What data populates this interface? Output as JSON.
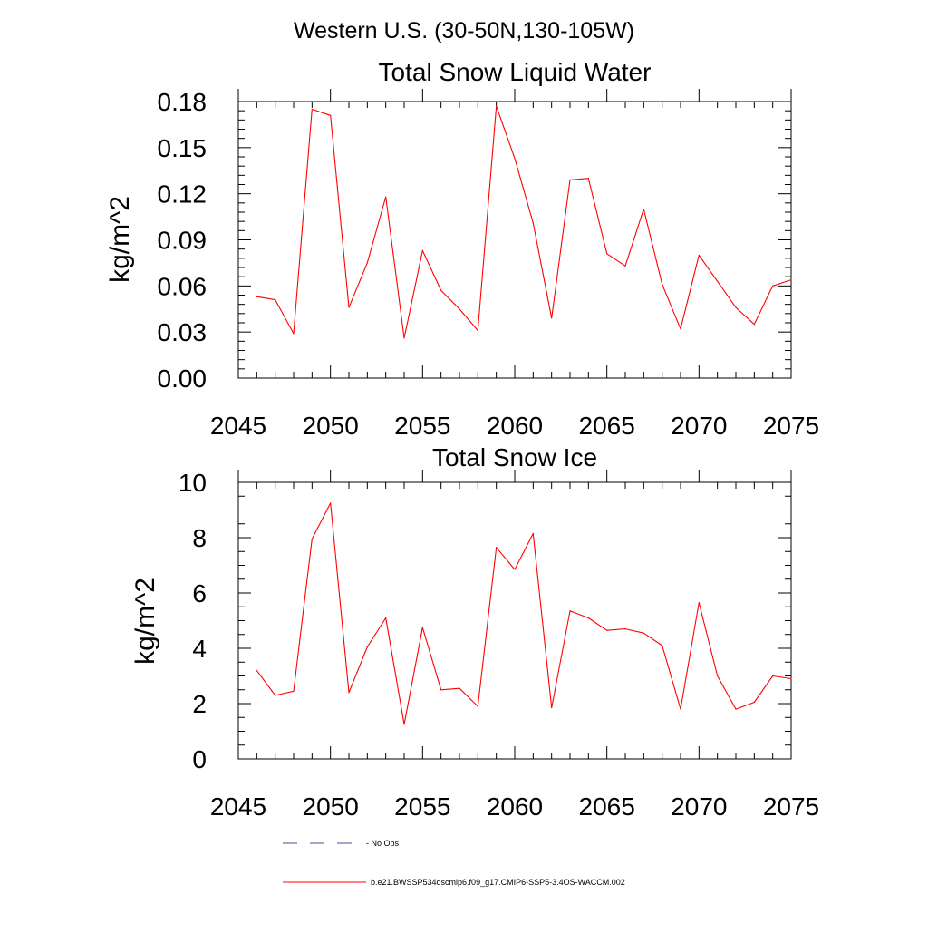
{
  "page_title": "Western U.S. (30-50N,130-105W)",
  "colors": {
    "model_line": "#ff0000",
    "obs_line": "#4a4a9a",
    "axis": "#000000"
  },
  "legend": {
    "obs_label": "- No Obs",
    "model_label": "b.e21.BWSSP534oscmip6.f09_g17.CMIP6-SSP5-3.4OS-WACCM.002"
  },
  "chart_data": [
    {
      "type": "line",
      "title": "Total Snow Liquid Water",
      "xlabel": "",
      "ylabel": "kg/m^2",
      "xlim": [
        2045,
        2075
      ],
      "ylim": [
        0,
        0.18
      ],
      "xticks": [
        2045,
        2050,
        2055,
        2060,
        2065,
        2070,
        2075
      ],
      "xtick_labels": [
        "2045",
        "2050",
        "2055",
        "2060",
        "2065",
        "2070",
        "2075"
      ],
      "yticks": [
        0,
        0.03,
        0.06,
        0.09,
        0.12,
        0.15,
        0.18
      ],
      "ytick_labels": [
        "0.00",
        "0.03",
        "0.06",
        "0.09",
        "0.12",
        "0.15",
        "0.18"
      ],
      "series": [
        {
          "name": "b.e21.BWSSP534oscmip6.f09_g17.CMIP6-SSP5-3.4OS-WACCM.002",
          "x": [
            2046,
            2047,
            2048,
            2049,
            2050,
            2051,
            2052,
            2053,
            2054,
            2055,
            2056,
            2057,
            2058,
            2059,
            2060,
            2061,
            2062,
            2063,
            2064,
            2065,
            2066,
            2067,
            2068,
            2069,
            2070,
            2071,
            2072,
            2073,
            2074,
            2075
          ],
          "values": [
            0.053,
            0.051,
            0.029,
            0.175,
            0.171,
            0.046,
            0.075,
            0.118,
            0.026,
            0.083,
            0.057,
            0.045,
            0.031,
            0.177,
            0.143,
            0.101,
            0.039,
            0.129,
            0.13,
            0.081,
            0.073,
            0.11,
            0.061,
            0.032,
            0.08,
            0.063,
            0.046,
            0.035,
            0.06,
            0.064
          ]
        }
      ]
    },
    {
      "type": "line",
      "title": "Total Snow Ice",
      "xlabel": "",
      "ylabel": "kg/m^2",
      "xlim": [
        2045,
        2075
      ],
      "ylim": [
        0,
        10
      ],
      "xticks": [
        2045,
        2050,
        2055,
        2060,
        2065,
        2070,
        2075
      ],
      "xtick_labels": [
        "2045",
        "2050",
        "2055",
        "2060",
        "2065",
        "2070",
        "2075"
      ],
      "yticks": [
        0,
        2,
        4,
        6,
        8,
        10
      ],
      "ytick_labels": [
        "0",
        "2",
        "4",
        "6",
        "8",
        "10"
      ],
      "series": [
        {
          "name": "b.e21.BWSSP534oscmip6.f09_g17.CMIP6-SSP5-3.4OS-WACCM.002",
          "x": [
            2046,
            2047,
            2048,
            2049,
            2050,
            2051,
            2052,
            2053,
            2054,
            2055,
            2056,
            2057,
            2058,
            2059,
            2060,
            2061,
            2062,
            2063,
            2064,
            2065,
            2066,
            2067,
            2068,
            2069,
            2070,
            2071,
            2072,
            2073,
            2074,
            2075
          ],
          "values": [
            3.2,
            2.3,
            2.45,
            7.95,
            9.25,
            2.4,
            4.05,
            5.1,
            1.25,
            4.75,
            2.5,
            2.55,
            1.9,
            7.65,
            6.85,
            8.15,
            1.85,
            5.35,
            5.1,
            4.65,
            4.7,
            4.55,
            4.1,
            1.8,
            5.65,
            3.0,
            1.8,
            2.05,
            3.0,
            2.9
          ]
        }
      ]
    }
  ]
}
